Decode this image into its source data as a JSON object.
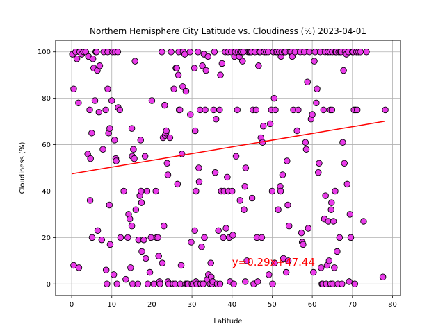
{
  "chart_data": {
    "type": "scatter",
    "title": "Northern Hemisphere City Latitude vs. Cloudiness (%) 2023-04-01",
    "xlabel": "Latitude",
    "ylabel": "Cloudiness (%)",
    "xlim": [
      -4,
      82
    ],
    "ylim": [
      -5,
      105
    ],
    "xticks": [
      0,
      10,
      20,
      30,
      40,
      50,
      60,
      70,
      80
    ],
    "yticks": [
      0,
      20,
      40,
      60,
      80,
      100
    ],
    "grid": true,
    "legend": "none",
    "marker_color": "#e93be9",
    "marker_edge_color": "#000000",
    "regression": {
      "label": "y=0.29x+47.44",
      "slope": 0.29,
      "intercept": 47.44,
      "x_range": [
        0.1,
        78
      ],
      "color": "#ff0000",
      "label_x": 40,
      "label_y": 10
    },
    "points": [
      [
        0.2,
        99
      ],
      [
        0.5,
        84
      ],
      [
        0.5,
        8
      ],
      [
        1,
        100
      ],
      [
        1.3,
        97
      ],
      [
        1.7,
        78
      ],
      [
        1.8,
        7
      ],
      [
        2,
        100
      ],
      [
        2.5,
        99
      ],
      [
        3,
        100
      ],
      [
        3.5,
        100
      ],
      [
        4,
        56
      ],
      [
        4.2,
        98
      ],
      [
        4.5,
        75
      ],
      [
        4.6,
        36
      ],
      [
        4.7,
        54
      ],
      [
        5,
        65
      ],
      [
        5.1,
        20
      ],
      [
        5.3,
        97
      ],
      [
        5.5,
        93
      ],
      [
        5.8,
        79
      ],
      [
        6,
        100
      ],
      [
        6.2,
        100
      ],
      [
        6.4,
        92
      ],
      [
        6.5,
        23
      ],
      [
        6.8,
        74
      ],
      [
        7,
        94
      ],
      [
        7.5,
        19
      ],
      [
        7.8,
        58
      ],
      [
        8,
        100
      ],
      [
        8.5,
        75
      ],
      [
        8.6,
        6
      ],
      [
        8.8,
        0
      ],
      [
        9,
        100
      ],
      [
        9,
        84
      ],
      [
        9.2,
        65
      ],
      [
        9.4,
        34
      ],
      [
        9.5,
        67
      ],
      [
        9.6,
        17
      ],
      [
        10,
        79
      ],
      [
        10.2,
        100
      ],
      [
        10.5,
        4
      ],
      [
        10.7,
        62
      ],
      [
        10.8,
        100
      ],
      [
        11,
        54
      ],
      [
        11.1,
        53
      ],
      [
        11.3,
        0
      ],
      [
        11.5,
        100
      ],
      [
        11.6,
        76
      ],
      [
        12,
        75
      ],
      [
        12.2,
        20
      ],
      [
        13,
        40
      ],
      [
        13.5,
        2
      ],
      [
        14,
        20
      ],
      [
        14.2,
        30
      ],
      [
        14.5,
        28
      ],
      [
        14.7,
        7
      ],
      [
        15,
        67
      ],
      [
        15,
        25
      ],
      [
        15.1,
        55
      ],
      [
        15.2,
        0
      ],
      [
        15.4,
        58
      ],
      [
        15.6,
        54
      ],
      [
        15.8,
        96
      ],
      [
        16,
        32
      ],
      [
        16.5,
        0
      ],
      [
        16.7,
        19
      ],
      [
        17,
        38
      ],
      [
        17.2,
        62
      ],
      [
        17.3,
        40
      ],
      [
        17.4,
        35
      ],
      [
        17.5,
        14
      ],
      [
        18,
        19
      ],
      [
        18.3,
        55
      ],
      [
        18.5,
        11
      ],
      [
        18.8,
        40
      ],
      [
        19,
        0
      ],
      [
        19.5,
        5
      ],
      [
        19.8,
        20
      ],
      [
        20,
        79
      ],
      [
        20.5,
        0
      ],
      [
        21,
        40
      ],
      [
        21.2,
        20
      ],
      [
        21.5,
        20
      ],
      [
        21.7,
        12
      ],
      [
        21.9,
        1
      ],
      [
        22,
        0
      ],
      [
        22.5,
        100
      ],
      [
        22.6,
        9
      ],
      [
        22.8,
        63
      ],
      [
        23,
        25
      ],
      [
        23.2,
        77
      ],
      [
        23.3,
        64
      ],
      [
        23.5,
        65
      ],
      [
        23.6,
        66
      ],
      [
        23.8,
        52
      ],
      [
        24,
        47
      ],
      [
        24,
        1
      ],
      [
        24.2,
        0
      ],
      [
        24.5,
        63
      ],
      [
        24.8,
        100
      ],
      [
        25.3,
        0
      ],
      [
        25.5,
        84
      ],
      [
        25.8,
        0
      ],
      [
        26,
        93
      ],
      [
        26.2,
        93
      ],
      [
        26.4,
        43
      ],
      [
        26.6,
        90
      ],
      [
        26.7,
        100
      ],
      [
        26.8,
        75
      ],
      [
        27,
        75
      ],
      [
        27.1,
        0
      ],
      [
        27.3,
        8
      ],
      [
        27.5,
        56
      ],
      [
        27.7,
        85
      ],
      [
        27.8,
        100
      ],
      [
        28.2,
        99
      ],
      [
        28.4,
        0
      ],
      [
        28.5,
        83
      ],
      [
        28.8,
        0
      ],
      [
        29,
        0
      ],
      [
        29.5,
        100
      ],
      [
        29.6,
        73
      ],
      [
        29.8,
        18
      ],
      [
        30,
        0
      ],
      [
        30.3,
        0
      ],
      [
        30.6,
        93
      ],
      [
        30.7,
        23
      ],
      [
        30.8,
        66
      ],
      [
        31,
        40
      ],
      [
        31,
        1
      ],
      [
        31.2,
        0
      ],
      [
        31.5,
        100
      ],
      [
        31.7,
        50
      ],
      [
        31.8,
        44
      ],
      [
        32,
        75
      ],
      [
        32.2,
        0
      ],
      [
        32.4,
        16
      ],
      [
        32.6,
        94
      ],
      [
        32.8,
        0
      ],
      [
        33,
        99
      ],
      [
        33.1,
        20
      ],
      [
        33.3,
        75
      ],
      [
        33.5,
        92
      ],
      [
        33.8,
        2
      ],
      [
        34,
        98
      ],
      [
        34.1,
        4
      ],
      [
        34.5,
        0
      ],
      [
        34.7,
        9
      ],
      [
        34.8,
        3
      ],
      [
        34.9,
        0
      ],
      [
        35,
        0
      ],
      [
        35.2,
        1
      ],
      [
        35.4,
        75
      ],
      [
        35.6,
        100
      ],
      [
        35.8,
        48
      ],
      [
        36,
        71
      ],
      [
        36.3,
        0
      ],
      [
        36.6,
        23
      ],
      [
        36.9,
        75
      ],
      [
        37,
        0
      ],
      [
        37.1,
        90
      ],
      [
        37.3,
        40
      ],
      [
        37.5,
        95
      ],
      [
        37.8,
        20
      ],
      [
        38,
        40
      ],
      [
        38.3,
        100
      ],
      [
        38.5,
        24
      ],
      [
        38.8,
        46
      ],
      [
        39,
        100
      ],
      [
        39.1,
        40
      ],
      [
        39.3,
        20
      ],
      [
        39.5,
        1
      ],
      [
        39.8,
        100
      ],
      [
        40,
        40
      ],
      [
        40.2,
        21
      ],
      [
        40.4,
        0
      ],
      [
        40.6,
        98
      ],
      [
        40.8,
        100
      ],
      [
        41,
        55
      ],
      [
        41.3,
        75
      ],
      [
        41.5,
        100
      ],
      [
        41.8,
        98
      ],
      [
        42,
        36
      ],
      [
        42.1,
        100
      ],
      [
        42.4,
        100
      ],
      [
        42.6,
        96
      ],
      [
        42.8,
        100
      ],
      [
        43,
        32
      ],
      [
        43.2,
        42
      ],
      [
        43.3,
        1
      ],
      [
        43.4,
        50
      ],
      [
        43.7,
        10
      ],
      [
        44,
        100
      ],
      [
        44.3,
        100
      ],
      [
        44.5,
        100
      ],
      [
        44.8,
        100
      ],
      [
        45,
        37
      ],
      [
        45.2,
        75
      ],
      [
        45.4,
        0
      ],
      [
        45.7,
        100
      ],
      [
        46,
        75
      ],
      [
        46.2,
        20
      ],
      [
        46.4,
        1
      ],
      [
        46.6,
        94
      ],
      [
        46.8,
        100
      ],
      [
        47,
        100
      ],
      [
        47.2,
        63
      ],
      [
        47.4,
        20
      ],
      [
        47.6,
        61
      ],
      [
        47.8,
        68
      ],
      [
        48,
        100
      ],
      [
        48.5,
        100
      ],
      [
        49,
        100
      ],
      [
        49.2,
        4
      ],
      [
        49.5,
        69
      ],
      [
        49.8,
        75
      ],
      [
        50,
        40
      ],
      [
        50.1,
        0
      ],
      [
        50.3,
        100
      ],
      [
        50.5,
        80
      ],
      [
        50.6,
        9
      ],
      [
        50.8,
        75
      ],
      [
        51,
        100
      ],
      [
        51.3,
        100
      ],
      [
        51.5,
        32
      ],
      [
        51.8,
        100
      ],
      [
        52,
        42
      ],
      [
        52.1,
        40
      ],
      [
        52.2,
        98
      ],
      [
        52.4,
        100
      ],
      [
        52.6,
        47
      ],
      [
        52.8,
        11
      ],
      [
        53,
        100
      ],
      [
        53.3,
        100
      ],
      [
        53.5,
        5
      ],
      [
        53.7,
        53
      ],
      [
        53.9,
        34
      ],
      [
        54,
        10
      ],
      [
        54.2,
        25
      ],
      [
        54.5,
        100
      ],
      [
        54.8,
        100
      ],
      [
        55,
        98
      ],
      [
        55.3,
        75
      ],
      [
        55.7,
        100
      ],
      [
        56.2,
        66
      ],
      [
        56.5,
        75
      ],
      [
        57,
        100
      ],
      [
        57.3,
        22
      ],
      [
        57.5,
        18
      ],
      [
        57.7,
        17
      ],
      [
        58,
        100
      ],
      [
        58.3,
        61
      ],
      [
        58.5,
        58
      ],
      [
        58.8,
        87
      ],
      [
        59,
        24
      ],
      [
        59.3,
        100
      ],
      [
        59.7,
        71
      ],
      [
        60,
        73
      ],
      [
        60.3,
        5
      ],
      [
        60.5,
        96
      ],
      [
        60.7,
        100
      ],
      [
        61,
        78
      ],
      [
        61.2,
        84
      ],
      [
        61.5,
        48
      ],
      [
        61.7,
        52
      ],
      [
        62,
        100
      ],
      [
        62.2,
        7
      ],
      [
        62.4,
        0
      ],
      [
        62.6,
        0
      ],
      [
        62.8,
        75
      ],
      [
        63,
        28
      ],
      [
        63.2,
        100
      ],
      [
        63.3,
        38
      ],
      [
        63.5,
        0
      ],
      [
        63.7,
        8
      ],
      [
        63.9,
        100
      ],
      [
        64,
        27
      ],
      [
        64.2,
        10
      ],
      [
        64.4,
        100
      ],
      [
        64.5,
        75
      ],
      [
        64.6,
        0
      ],
      [
        64.7,
        32
      ],
      [
        64.8,
        35
      ],
      [
        64.9,
        75
      ],
      [
        65,
        100
      ],
      [
        65.1,
        0
      ],
      [
        65.3,
        27
      ],
      [
        65.5,
        7
      ],
      [
        65.7,
        40
      ],
      [
        65.8,
        100
      ],
      [
        66,
        100
      ],
      [
        66.2,
        14
      ],
      [
        66.4,
        0
      ],
      [
        66.6,
        100
      ],
      [
        66.8,
        20
      ],
      [
        67,
        100
      ],
      [
        67.2,
        100
      ],
      [
        67.4,
        0
      ],
      [
        67.6,
        61
      ],
      [
        67.8,
        92
      ],
      [
        68,
        52
      ],
      [
        68.2,
        100
      ],
      [
        68.5,
        99
      ],
      [
        68.7,
        43
      ],
      [
        69,
        100
      ],
      [
        69.2,
        1
      ],
      [
        69.4,
        30
      ],
      [
        69.6,
        20
      ],
      [
        70,
        100
      ],
      [
        70.2,
        100
      ],
      [
        70.4,
        75
      ],
      [
        70.6,
        0
      ],
      [
        70.8,
        75
      ],
      [
        71,
        100
      ],
      [
        71.2,
        75
      ],
      [
        71.5,
        100
      ],
      [
        72,
        100
      ],
      [
        72.8,
        27
      ],
      [
        73.5,
        100
      ],
      [
        77.6,
        3
      ],
      [
        78.2,
        75
      ]
    ]
  }
}
